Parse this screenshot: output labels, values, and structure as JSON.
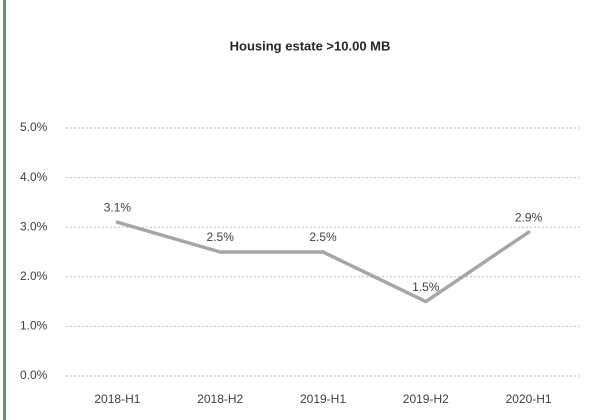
{
  "chart_data": {
    "type": "line",
    "title": "Housing estate >10.00 MB",
    "categories": [
      "2018-H1",
      "2018-H2",
      "2019-H1",
      "2019-H2",
      "2020-H1"
    ],
    "series": [
      {
        "name": "Housing estate >10.00 MB",
        "color": "#a6a6a6",
        "values": [
          3.1,
          2.5,
          2.5,
          1.5,
          2.9
        ],
        "value_labels": [
          "3.1%",
          "2.5%",
          "2.5%",
          "1.5%",
          "2.9%"
        ]
      }
    ],
    "ylim": [
      0,
      5
    ],
    "yticks": [
      {
        "value": 0,
        "label": "0.0%"
      },
      {
        "value": 1,
        "label": "1.0%"
      },
      {
        "value": 2,
        "label": "2.0%"
      },
      {
        "value": 3,
        "label": "3.0%"
      },
      {
        "value": 4,
        "label": "4.0%"
      },
      {
        "value": 5,
        "label": "5.0%"
      }
    ],
    "grid": true
  }
}
